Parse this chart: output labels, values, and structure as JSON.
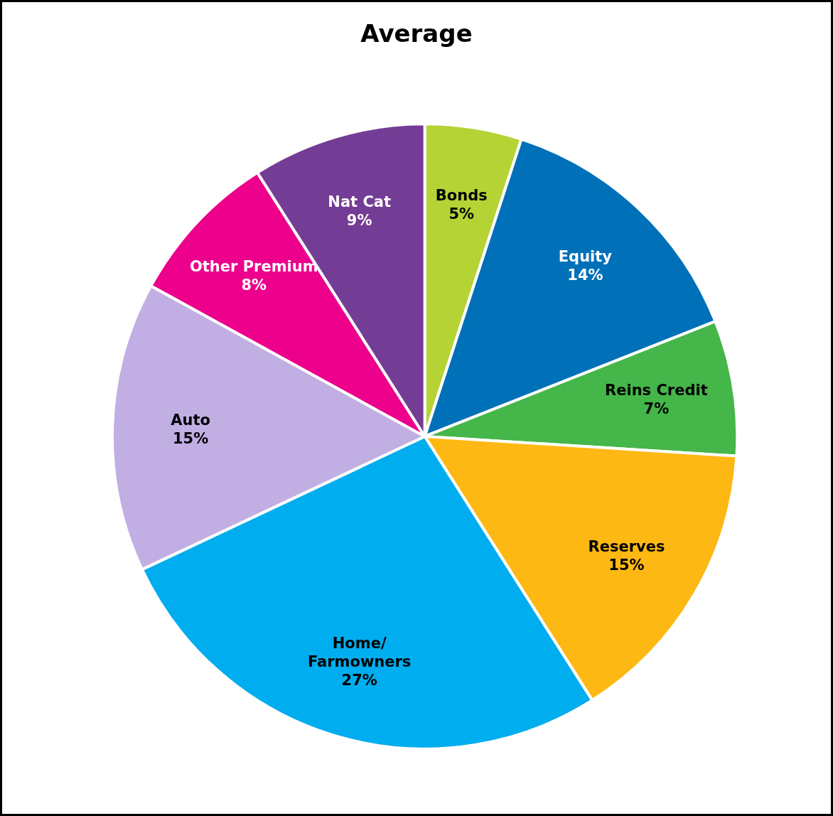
{
  "chart_data": {
    "type": "pie",
    "title": "Average",
    "categories": [
      "Bonds",
      "Equity",
      "Reins Credit",
      "Reserves",
      "Home/Farmowners",
      "Auto",
      "Other Premium",
      "Nat Cat"
    ],
    "values": [
      5,
      14,
      7,
      15,
      27,
      15,
      8,
      9
    ],
    "value_labels": [
      "5%",
      "14%",
      "7%",
      "15%",
      "27%",
      "15%",
      "8%",
      "9%"
    ],
    "colors": [
      "#b5d334",
      "#0070b8",
      "#45b649",
      "#fdb813",
      "#00adee",
      "#c1aee3",
      "#ec008c",
      "#743d95"
    ],
    "legend": false
  }
}
